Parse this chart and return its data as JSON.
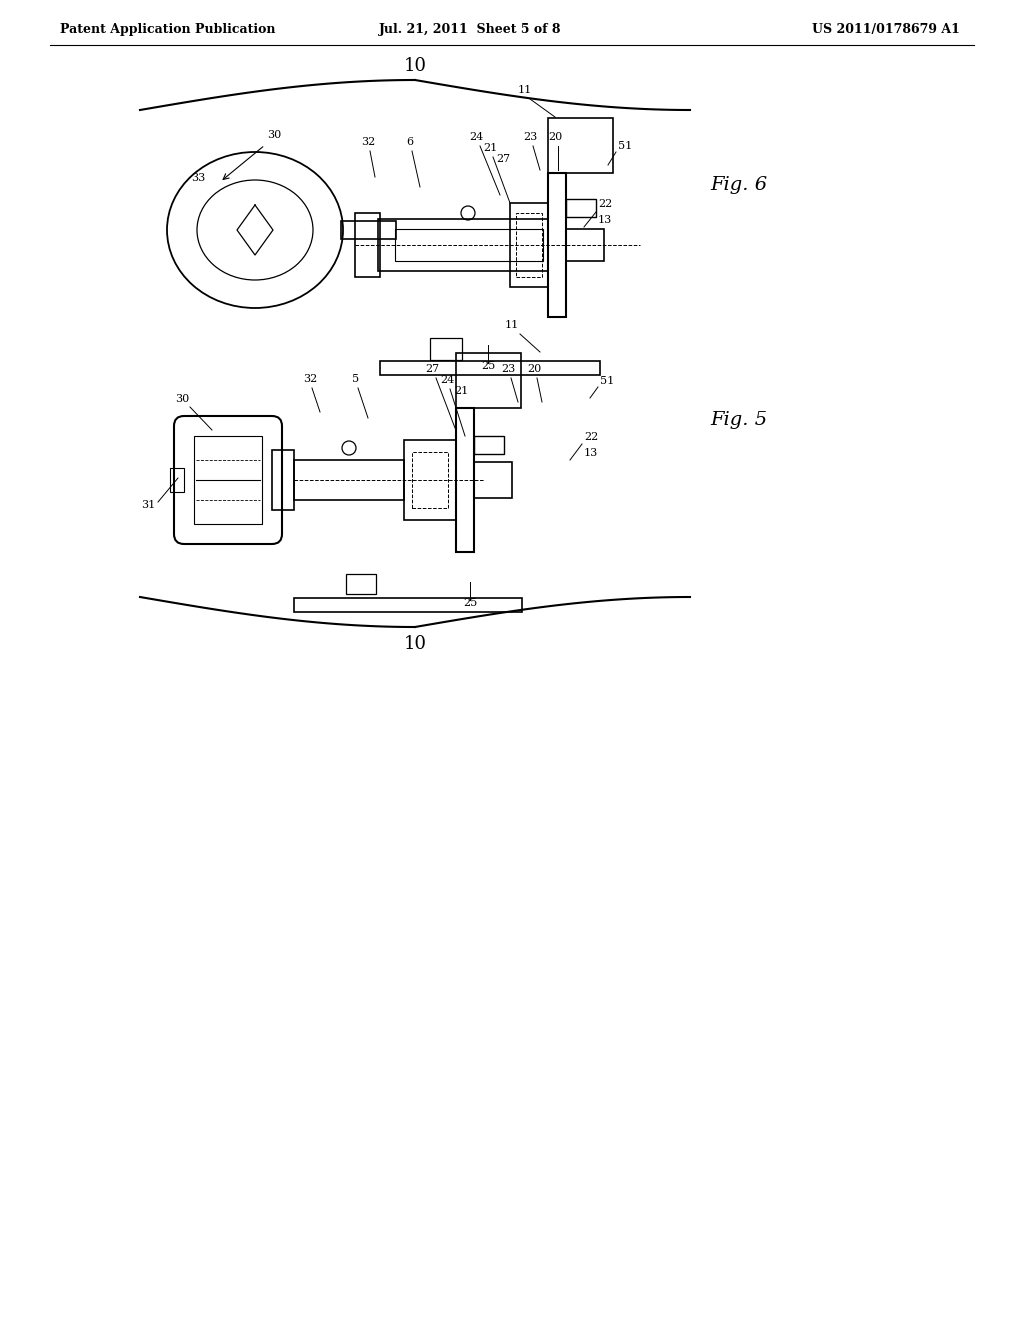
{
  "bg_color": "#ffffff",
  "line_color": "#000000",
  "header_left": "Patent Application Publication",
  "header_center": "Jul. 21, 2011  Sheet 5 of 8",
  "header_right": "US 2011/0178679 A1",
  "fig6_label": "Fig. 6",
  "fig5_label": "Fig. 5",
  "brace_label": "10"
}
